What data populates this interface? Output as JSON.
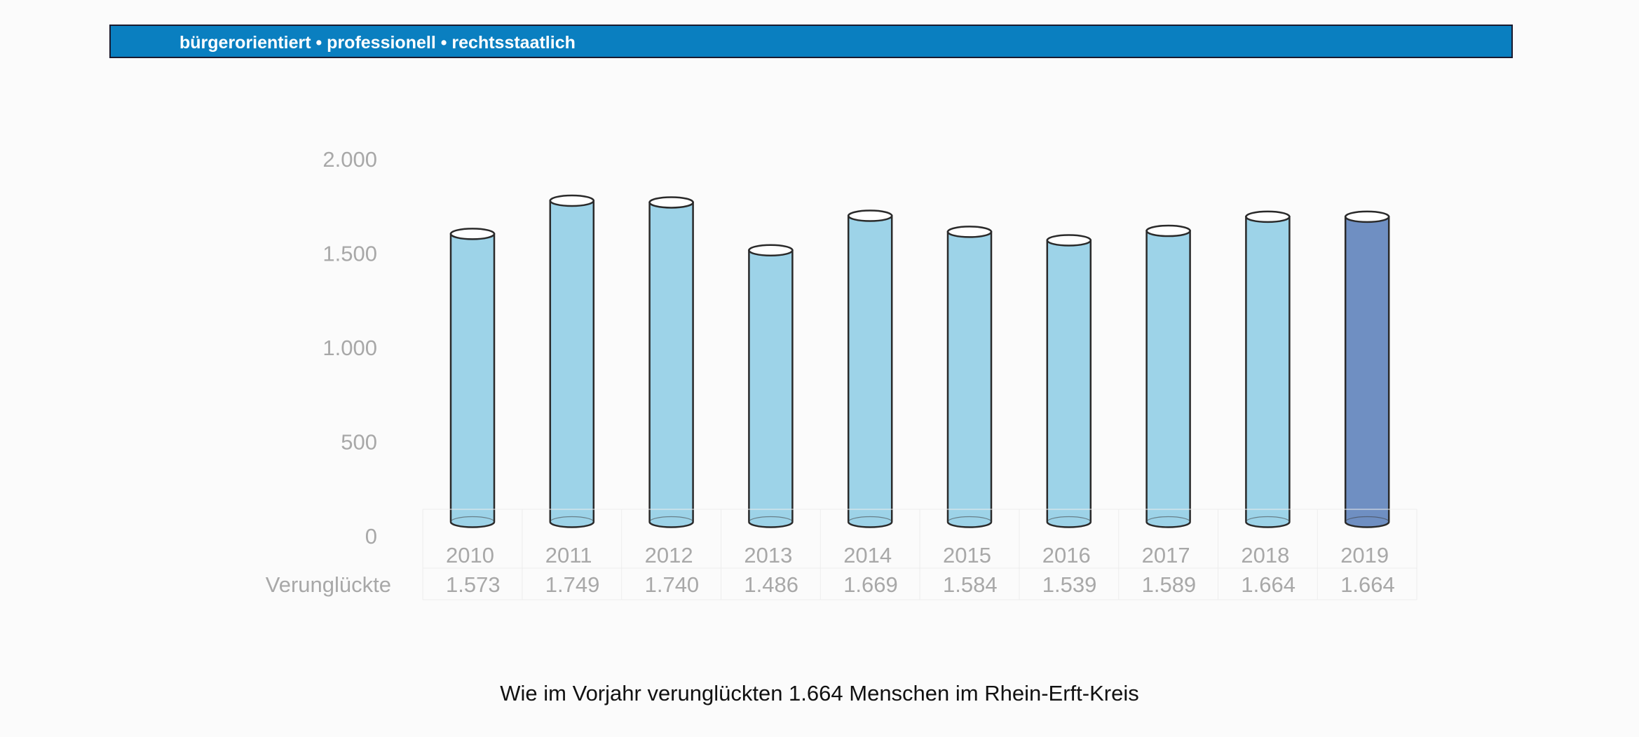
{
  "header": {
    "title_fragment": "",
    "tagline": "bürgerorientiert • professionell • rechtsstaatlich",
    "bar_color": "#0a7fc0"
  },
  "chart_data": {
    "type": "bar",
    "categories": [
      "2010",
      "2011",
      "2012",
      "2013",
      "2014",
      "2015",
      "2016",
      "2017",
      "2018",
      "2019"
    ],
    "series": [
      {
        "name": "Verunglückte",
        "values": [
          1573,
          1749,
          1740,
          1486,
          1669,
          1584,
          1539,
          1589,
          1664,
          1664
        ]
      }
    ],
    "value_labels": [
      "1.573",
      "1.749",
      "1.740",
      "1.486",
      "1.669",
      "1.584",
      "1.539",
      "1.589",
      "1.664",
      "1.664"
    ],
    "ytick_labels": [
      "0",
      "500",
      "1.000",
      "1.500",
      "2.000"
    ],
    "ytick_values": [
      0,
      500,
      1000,
      1500,
      2000
    ],
    "ylim": [
      0,
      2000
    ],
    "title": "",
    "xlabel": "",
    "ylabel": "",
    "grid": false,
    "legend": "data table below chart",
    "bar_color": "#9dd3e8",
    "highlight_color": "#6f8fc2",
    "highlight_index": 9
  },
  "caption": "Wie im Vorjahr verunglückten 1.664 Menschen im Rhein-Erft-Kreis"
}
